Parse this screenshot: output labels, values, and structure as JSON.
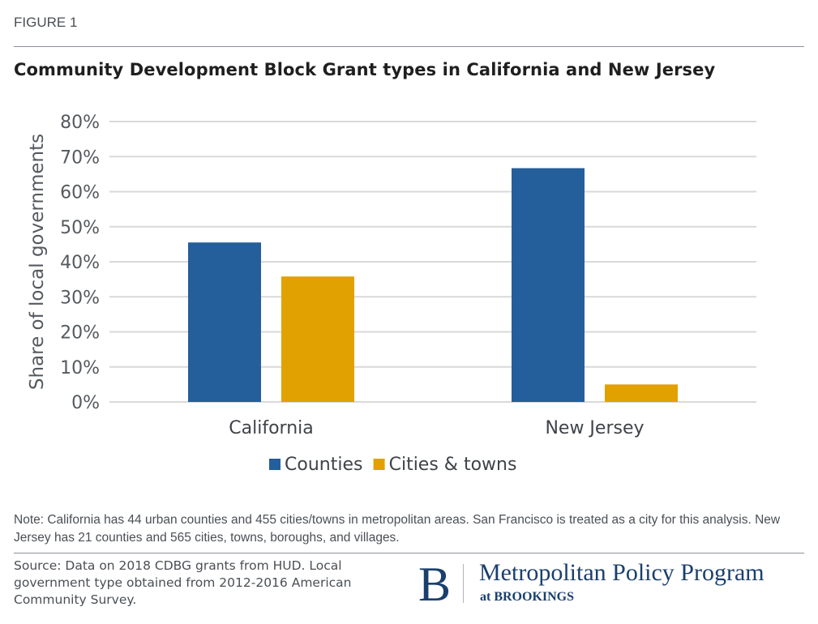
{
  "figure_label": "FIGURE 1",
  "note": "Note: California has 44 urban counties and 455 cities/towns in metropolitan areas. San Francisco is treated as a city for this analysis. New Jersey has 21 counties and 565 cities, towns, boroughs, and villages.",
  "source": "Source: Data on 2018 CDBG grants from HUD. Local government type obtained from 2012-2016 American Community Survey.",
  "logo": {
    "letter": "B",
    "name": "Metropolitan Policy Program",
    "sub": "at BROOKINGS",
    "color": "#1a3f6e"
  },
  "chart_data": {
    "type": "bar",
    "title": "Community Development Block Grant types in California and New Jersey",
    "xlabel": "",
    "ylabel": "Share of local governments",
    "categories": [
      "California",
      "New Jersey"
    ],
    "series": [
      {
        "name": "Counties",
        "color": "#245e9b",
        "values": [
          45.5,
          66.7
        ]
      },
      {
        "name": "Cities & towns",
        "color": "#e1a100",
        "values": [
          35.8,
          5.0
        ]
      }
    ],
    "ylim": [
      0,
      80
    ],
    "yticks": [
      0,
      10,
      20,
      30,
      40,
      50,
      60,
      70,
      80
    ],
    "ytick_labels": [
      "0%",
      "10%",
      "20%",
      "30%",
      "40%",
      "50%",
      "60%",
      "70%",
      "80%"
    ],
    "grid": true,
    "legend_position": "bottom-center"
  }
}
